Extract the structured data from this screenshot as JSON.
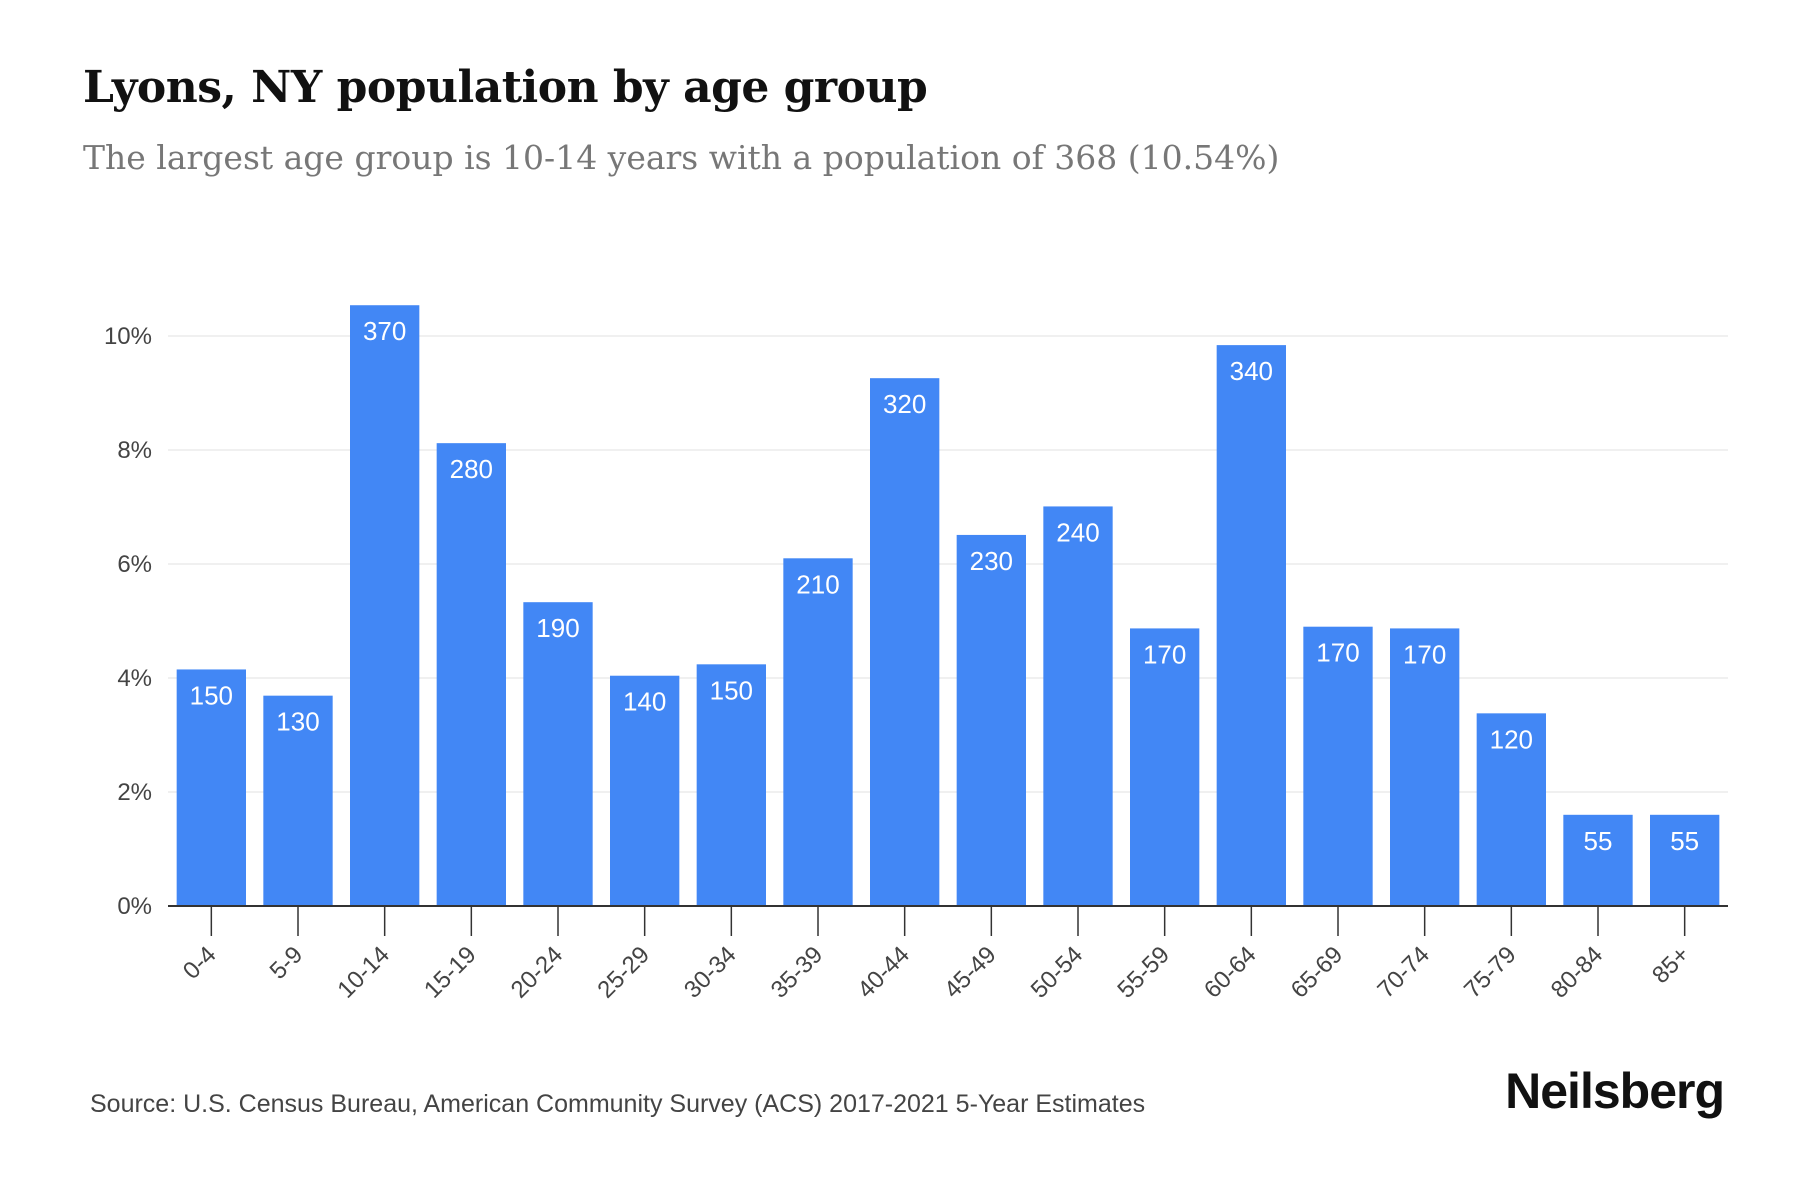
{
  "chart_data": {
    "type": "bar",
    "title": "Lyons, NY population by age group",
    "subtitle": "The largest age group is 10-14 years with a population of 368 (10.54%)",
    "categories": [
      "0-4",
      "5-9",
      "10-14",
      "15-19",
      "20-24",
      "25-29",
      "30-34",
      "35-39",
      "40-44",
      "45-49",
      "50-54",
      "55-59",
      "60-64",
      "65-69",
      "70-74",
      "75-79",
      "80-84",
      "85+"
    ],
    "percent_values": [
      4.15,
      3.69,
      10.54,
      8.12,
      5.33,
      4.04,
      4.24,
      6.1,
      9.26,
      6.51,
      7.01,
      4.87,
      9.84,
      4.9,
      4.87,
      3.38,
      1.6,
      1.6
    ],
    "data_labels": [
      "150",
      "130",
      "370",
      "280",
      "190",
      "140",
      "150",
      "210",
      "320",
      "230",
      "240",
      "170",
      "340",
      "170",
      "170",
      "120",
      "55",
      "55"
    ],
    "yticks": [
      "0%",
      "2%",
      "4%",
      "6%",
      "8%",
      "10%"
    ],
    "ytick_values": [
      0,
      2,
      4,
      6,
      8,
      10
    ],
    "ylim": [
      0,
      10.6
    ],
    "xlabel": "",
    "ylabel": "",
    "grid": true,
    "bar_color": "#4287f5"
  },
  "footer": {
    "source": "Source: U.S. Census Bureau, American Community Survey (ACS) 2017-2021 5-Year Estimates",
    "brand": "Neilsberg"
  },
  "colors": {
    "bar": "#4287f5",
    "grid": "#ececec",
    "axis": "#333333",
    "tick_text": "#444444",
    "label_text": "#ffffff"
  }
}
